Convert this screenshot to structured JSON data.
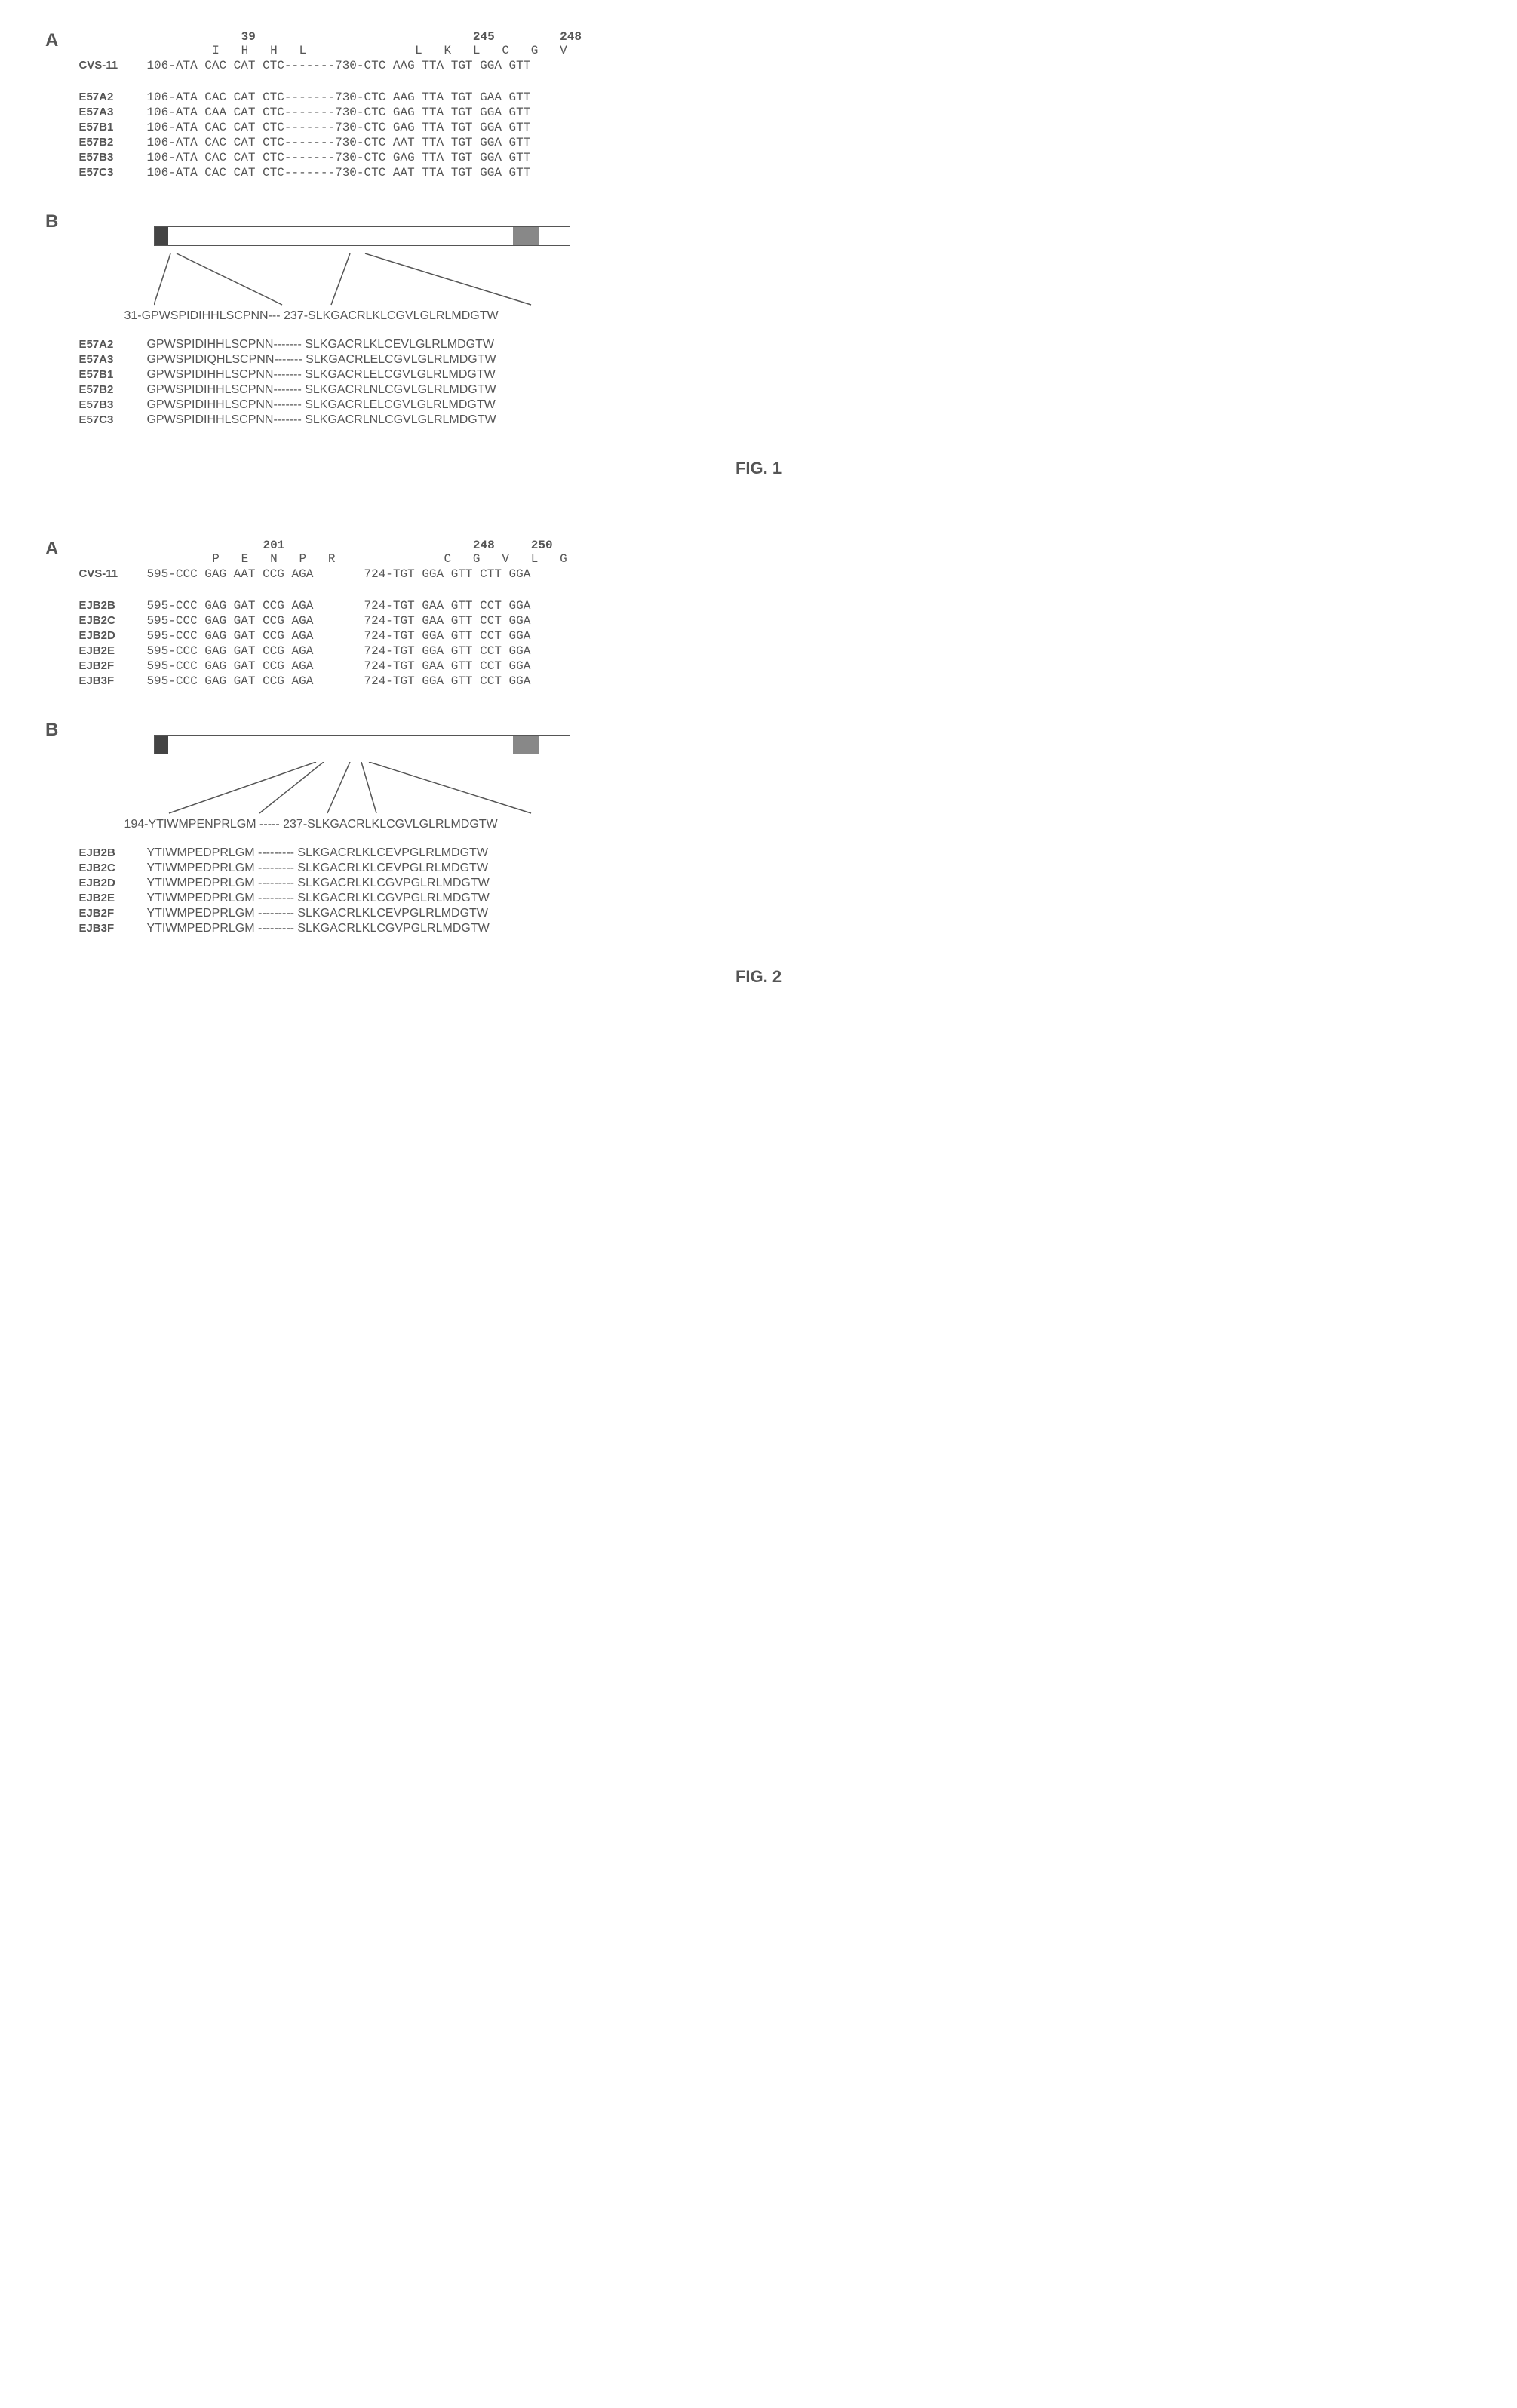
{
  "fig1": {
    "caption": "FIG. 1",
    "panelA": {
      "label": "A",
      "positions": "            39                              245         248",
      "aa_header": "        I   H   H   L               L   K   L   C   G   V",
      "ref_label": "CVS-11",
      "ref_seq": "106-ATA CAC CAT CTC-------730-CTC AAG TTA TGT GGA GTT",
      "rows": [
        {
          "label": "E57A2",
          "seq": "106-ATA CAC CAT CTC-------730-CTC AAG TTA TGT GAA GTT"
        },
        {
          "label": "E57A3",
          "seq": "106-ATA CAA CAT CTC-------730-CTC GAG TTA TGT GGA GTT"
        },
        {
          "label": "E57B1",
          "seq": "106-ATA CAC CAT CTC-------730-CTC GAG TTA TGT GGA GTT"
        },
        {
          "label": "E57B2",
          "seq": "106-ATA CAC CAT CTC-------730-CTC AAT TTA TGT GGA GTT"
        },
        {
          "label": "E57B3",
          "seq": "106-ATA CAC CAT CTC-------730-CTC GAG TTA TGT GGA GTT"
        },
        {
          "label": "E57C3",
          "seq": "106-ATA CAC CAT CTC-------730-CTC AAT TTA TGT GGA GTT"
        }
      ]
    },
    "panelB": {
      "label": "B",
      "ref_seq": "31-GPWSPIDIHHLSCPNN--- 237-SLKGACRLKLCGVLGLRLMDGTW",
      "rows": [
        {
          "label": "E57A2",
          "seq": "GPWSPIDIHHLSCPNN------- SLKGACRLKLCEVLGLRLMDGTW"
        },
        {
          "label": "E57A3",
          "seq": "GPWSPIDIQHLSCPNN------- SLKGACRLELCGVLGLRLMDGTW"
        },
        {
          "label": "E57B1",
          "seq": "GPWSPIDIHHLSCPNN------- SLKGACRLELCGVLGLRLMDGTW"
        },
        {
          "label": "E57B2",
          "seq": "GPWSPIDIHHLSCPNN------- SLKGACRLNLCGVLGLRLMDGTW"
        },
        {
          "label": "E57B3",
          "seq": "GPWSPIDIHHLSCPNN------- SLKGACRLELCGVLGLRLMDGTW"
        },
        {
          "label": "E57C3",
          "seq": "GPWSPIDIHHLSCPNN------- SLKGACRLNLCGVLGLRLMDGTW"
        }
      ]
    }
  },
  "fig2": {
    "caption": "FIG. 2",
    "panelA": {
      "label": "A",
      "positions": "               201                          248     250",
      "aa_header": "        P   E   N   P   R               C   G   V   L   G",
      "ref_label": "CVS-11",
      "ref_seq": "595-CCC GAG AAT CCG AGA       724-TGT GGA GTT CTT GGA",
      "rows": [
        {
          "label": "EJB2B",
          "left": "595-CCC GAG GAT CCG AGA",
          "right": "724-TGT GAA GTT CCT GGA"
        },
        {
          "label": "EJB2C",
          "left": "595-CCC GAG GAT CCG AGA",
          "right": "724-TGT GAA GTT CCT GGA"
        },
        {
          "label": "EJB2D",
          "left": "595-CCC GAG GAT CCG AGA",
          "right": "724-TGT GGA GTT CCT GGA"
        },
        {
          "label": "EJB2E",
          "left": "595-CCC GAG GAT CCG AGA",
          "right": "724-TGT GGA GTT CCT GGA"
        },
        {
          "label": "EJB2F",
          "left": "595-CCC GAG GAT CCG AGA",
          "right": "724-TGT GAA GTT CCT GGA"
        },
        {
          "label": "EJB3F",
          "left": "595-CCC GAG GAT CCG AGA",
          "right": "724-TGT GGA GTT CCT GGA"
        }
      ]
    },
    "panelB": {
      "label": "B",
      "ref_seq": "194-YTIWMPENPRLGM ----- 237-SLKGACRLKLCGVLGLRLMDGTW",
      "rows": [
        {
          "label": "EJB2B",
          "seq": "YTIWMPEDPRLGM --------- SLKGACRLKLCEVPGLRLMDGTW"
        },
        {
          "label": "EJB2C",
          "seq": "YTIWMPEDPRLGM --------- SLKGACRLKLCEVPGLRLMDGTW"
        },
        {
          "label": "EJB2D",
          "seq": "YTIWMPEDPRLGM --------- SLKGACRLKLCGVPGLRLMDGTW"
        },
        {
          "label": "EJB2E",
          "seq": "YTIWMPEDPRLGM --------- SLKGACRLKLCGVPGLRLMDGTW"
        },
        {
          "label": "EJB2F",
          "seq": "YTIWMPEDPRLGM --------- SLKGACRLKLCEVPGLRLMDGTW"
        },
        {
          "label": "EJB3F",
          "seq": "YTIWMPEDPRLGM --------- SLKGACRLKLCGVPGLRLMDGTW"
        }
      ]
    }
  },
  "styling": {
    "text_color": "#555555",
    "background": "#ffffff",
    "mono_font": "Courier New",
    "sans_font": "Arial",
    "panel_label_size": 24,
    "seq_size": 16
  }
}
